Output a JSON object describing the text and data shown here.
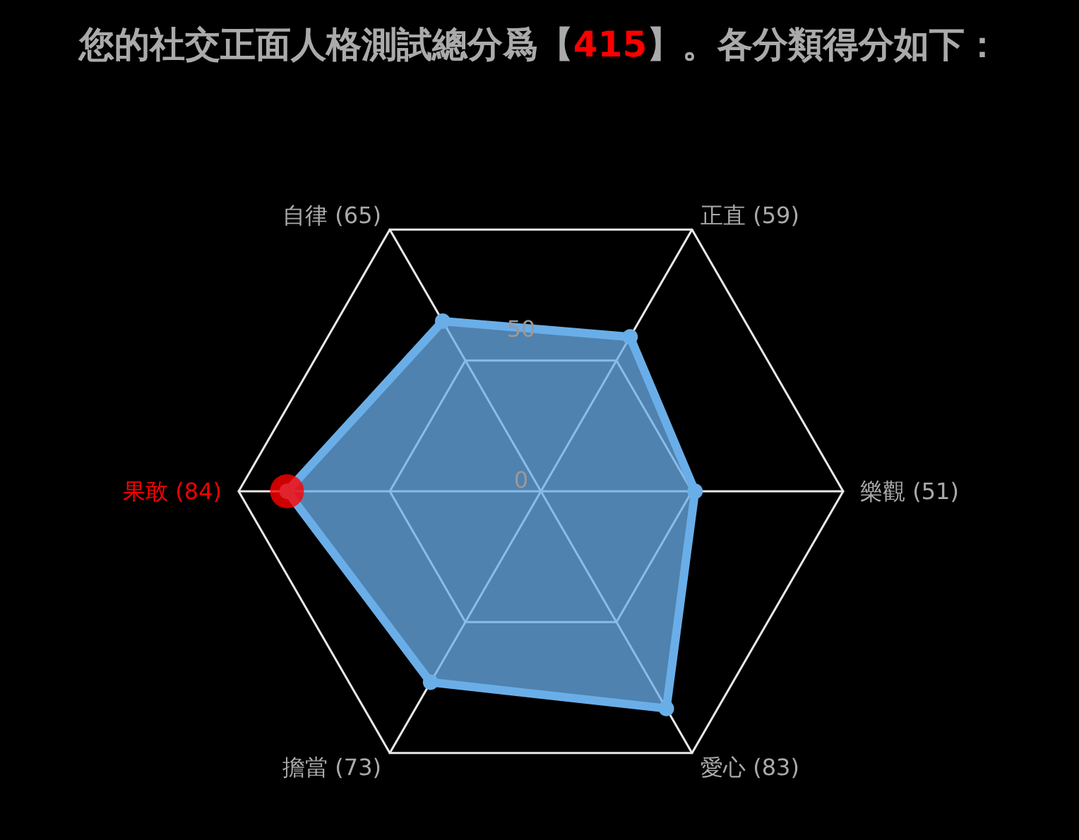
{
  "chart_data": {
    "type": "radar",
    "title": "您的社交正面人格測試總分爲【415】。各分類得分如下：",
    "categories": [
      "正直 (59)",
      "樂觀 (51)",
      "愛心 (83)",
      "擔當 (73)",
      "果敢 (84)",
      "自律 (65)"
    ],
    "ylim": [
      0,
      100
    ],
    "yticks": [
      0,
      50
    ],
    "marker": "circle",
    "series": [
      {
        "color": "#6aaee8",
        "colors": [
          "#6aaee8",
          "#6aaee8",
          "#6aaee8",
          "#6aaee8",
          "#ff0000",
          "#6aaee8"
        ],
        "values": [
          59,
          51,
          83,
          73,
          84,
          65
        ]
      }
    ]
  }
}
